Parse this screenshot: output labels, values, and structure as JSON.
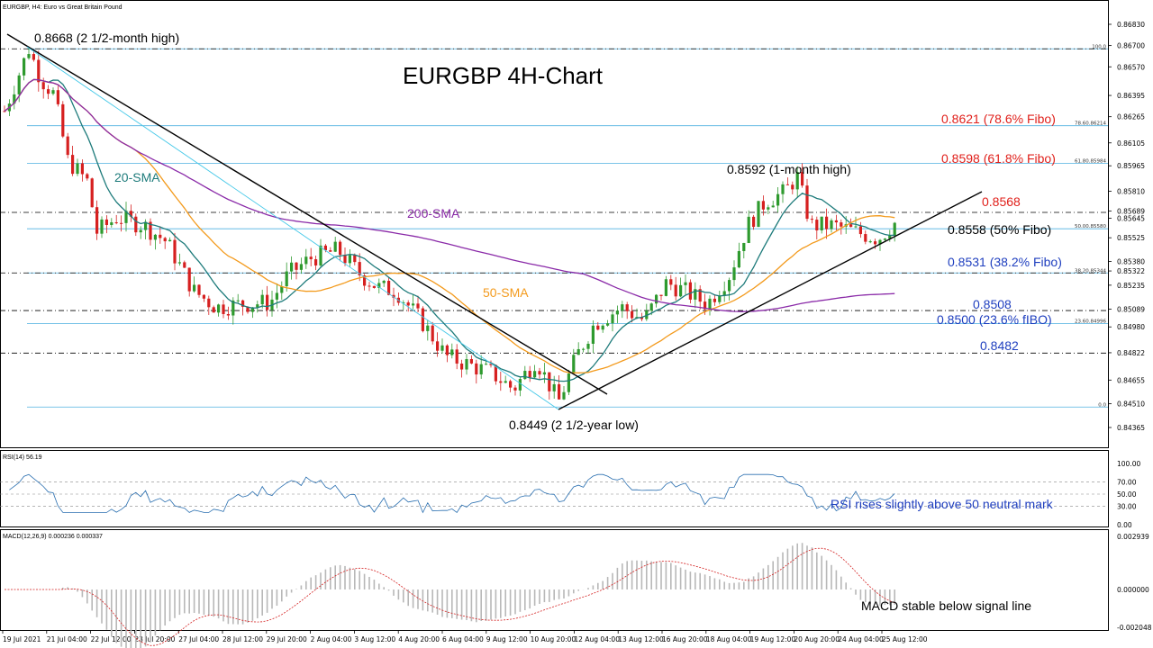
{
  "header": {
    "symbol_line": "EURGBP, H4:  Euro vs Great Britain Pound"
  },
  "title": "EURGBP 4H-Chart",
  "colors": {
    "bull": "#2e9a2e",
    "bear": "#d62020",
    "sma20": "#1e7b7b",
    "sma50": "#f39a1c",
    "sma200": "#8a2aa8",
    "fib_red": "#e0201b",
    "fib_blue": "#1f3fbf",
    "fibline": "#4fb0e0",
    "rsi": "#2a6fb0",
    "macd_hist": "#b8b8b8",
    "macd_signal": "#d42020"
  },
  "price_axis": [
    "0.86830",
    "0.86700",
    "0.86570",
    "0.86395",
    "0.86265",
    "0.86105",
    "0.85965",
    "0.85810",
    "0.85689",
    "0.85645",
    "0.85525",
    "0.85380",
    "0.85322",
    "0.85235",
    "0.85089",
    "0.84980",
    "0.84822",
    "0.84655",
    "0.84510",
    "0.84365"
  ],
  "fibo_small": [
    "100.0",
    "78.60.86214",
    "61.80.85984",
    "50.00.85580",
    "38.20.85344",
    "23.60.84996",
    "0.0"
  ],
  "annotations": {
    "high": "0.8668 (2 1/2-month high)",
    "low": "0.8449 (2 1/2-year low)",
    "month_high": "0.8592 (1-month high)",
    "sma20": "20-SMA",
    "sma50": "50-SMA",
    "sma200": "200-SMA",
    "fib786": "0.8621 (78.6% Fibo)",
    "fib618": "0.8598 (61.8% Fibo)",
    "lvl8568": "0.8568",
    "fib50": "0.8558 (50% Fibo)",
    "fib382": "0.8531 (38.2% Fibo)",
    "lvl8508": "0.8508",
    "fib236": "0.8500 (23.6% fIBO)",
    "lvl8482": "0.8482"
  },
  "time_axis": [
    "19 Jul 2021",
    "21 Jul 04:00",
    "22 Jul 12:00",
    "23 Jul 20:00",
    "27 Jul 04:00",
    "28 Jul 12:00",
    "29 Jul 20:00",
    "2 Aug 04:00",
    "3 Aug 12:00",
    "4 Aug 20:00",
    "6 Aug 04:00",
    "9 Aug 12:00",
    "10 Aug 20:00",
    "12 Aug 04:00",
    "13 Aug 12:00",
    "16 Aug 20:00",
    "18 Aug 04:00",
    "19 Aug 12:00",
    "20 Aug 20:00",
    "24 Aug 04:00",
    "25 Aug 12:00"
  ],
  "rsi": {
    "label": "RSI(14) 56.19",
    "axis": [
      "100.00",
      "70.00",
      "50.00",
      "30.00",
      "0.00"
    ],
    "note": "RSI rises slightly above 50 neutral mark"
  },
  "macd": {
    "label": "MACD(12,26,9) 0.000236 0.000337",
    "axis": [
      "0.002939",
      "0.000000",
      "-0.002048"
    ],
    "note": "MACD stable below signal line"
  },
  "chart_data": {
    "type": "candlestick",
    "title": "EURGBP 4H-Chart",
    "series_price_key_points": [
      {
        "x": "21 Jul 04:00",
        "y": 0.8668
      },
      {
        "x": "10 Aug 20:00",
        "y": 0.8449
      },
      {
        "x": "20 Aug 20:00",
        "y": 0.8592
      },
      {
        "x": "25 Aug 12:00",
        "y": 0.8564
      }
    ],
    "fibonacci": [
      {
        "level": "100.0",
        "price": 0.8668
      },
      {
        "level": "78.6",
        "price": 0.8621
      },
      {
        "level": "61.8",
        "price": 0.8598
      },
      {
        "level": "50.0",
        "price": 0.8558
      },
      {
        "level": "38.2",
        "price": 0.8531
      },
      {
        "level": "23.6",
        "price": 0.85
      },
      {
        "level": "0.0",
        "price": 0.8449
      }
    ],
    "horizontal_levels": [
      0.8568,
      0.8508,
      0.8482
    ],
    "indicators": [
      "20-SMA",
      "50-SMA",
      "200-SMA",
      "RSI(14)",
      "MACD(12,26,9)"
    ],
    "rsi_last": 56.19,
    "macd_last": [
      0.000236,
      0.000337
    ],
    "ylim": [
      0.843,
      0.869
    ]
  }
}
